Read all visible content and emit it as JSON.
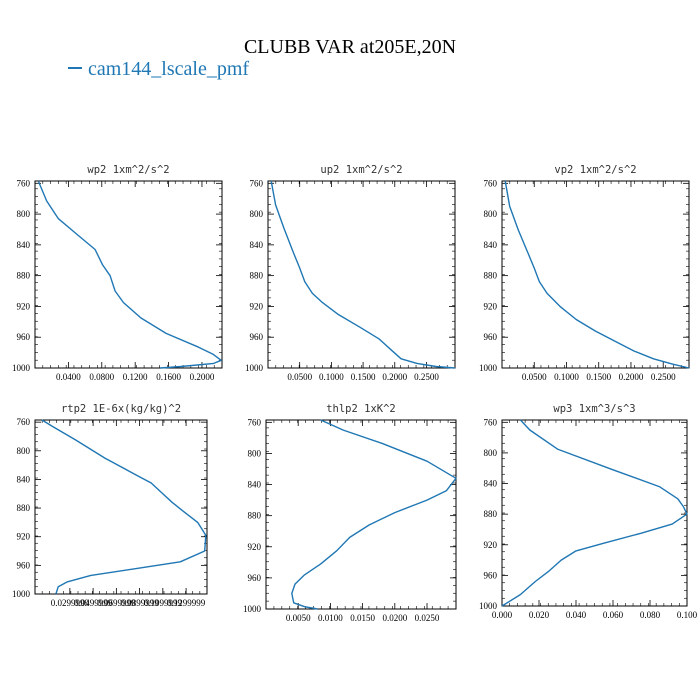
{
  "title": "CLUBB VAR at205E,20N",
  "legend": [
    {
      "label": "cam144_lscale_pmf",
      "color": "#1f77b4"
    }
  ],
  "chart_data": [
    {
      "type": "line",
      "title": "wp2  1xm^2/s^2",
      "xlim": [
        0,
        0.224
      ],
      "ylim": [
        757,
        1000
      ],
      "xticks": [
        0.04,
        0.08,
        0.12,
        0.16,
        0.2
      ],
      "xtick_labels": [
        "0.0400",
        "0.0800",
        "0.1200",
        "0.1600",
        "0.2000"
      ],
      "yticks": [
        760,
        800,
        840,
        880,
        920,
        960,
        1000
      ],
      "ytick_labels": [
        "760",
        "800",
        "840",
        "880",
        "920",
        "960",
        "1000"
      ],
      "series": [
        {
          "color": "#1f77b4",
          "x": [
            0.004,
            0.014,
            0.028,
            0.05,
            0.072,
            0.081,
            0.09,
            0.096,
            0.106,
            0.127,
            0.157,
            0.196,
            0.213,
            0.223,
            0.214,
            0.175,
            0.15
          ],
          "y": [
            757,
            783,
            806,
            826,
            846,
            866,
            880,
            900,
            915,
            935,
            955,
            973,
            982,
            990,
            994,
            998,
            1000
          ]
        }
      ]
    },
    {
      "type": "line",
      "title": "up2  1xm^2/s^2",
      "xlim": [
        0,
        0.295
      ],
      "ylim": [
        757,
        1000
      ],
      "xticks": [
        0.05,
        0.1,
        0.15,
        0.2,
        0.25
      ],
      "xtick_labels": [
        "0.0500",
        "0.1000",
        "0.1500",
        "0.2000",
        "0.2500"
      ],
      "yticks": [
        760,
        800,
        840,
        880,
        920,
        960,
        1000
      ],
      "ytick_labels": [
        "760",
        "800",
        "840",
        "880",
        "920",
        "960",
        "1000"
      ],
      "series": [
        {
          "color": "#1f77b4",
          "x": [
            0.005,
            0.012,
            0.025,
            0.04,
            0.05,
            0.058,
            0.07,
            0.086,
            0.11,
            0.145,
            0.175,
            0.195,
            0.21,
            0.235,
            0.265,
            0.295
          ],
          "y": [
            757,
            788,
            818,
            850,
            870,
            888,
            903,
            915,
            930,
            947,
            962,
            977,
            988,
            994,
            998,
            1000
          ]
        }
      ]
    },
    {
      "type": "line",
      "title": "vp2  1xm^2/s^2",
      "xlim": [
        0,
        0.29
      ],
      "ylim": [
        757,
        1000
      ],
      "xticks": [
        0.05,
        0.1,
        0.15,
        0.2,
        0.25
      ],
      "xtick_labels": [
        "0.0500",
        "0.1000",
        "0.1500",
        "0.2000",
        "0.2500"
      ],
      "yticks": [
        760,
        800,
        840,
        880,
        920,
        960,
        1000
      ],
      "ytick_labels": [
        "760",
        "800",
        "840",
        "880",
        "920",
        "960",
        "1000"
      ],
      "series": [
        {
          "color": "#1f77b4",
          "x": [
            0.005,
            0.012,
            0.025,
            0.04,
            0.05,
            0.058,
            0.07,
            0.09,
            0.115,
            0.145,
            0.175,
            0.205,
            0.235,
            0.265,
            0.29
          ],
          "y": [
            757,
            790,
            820,
            850,
            870,
            888,
            903,
            920,
            937,
            952,
            965,
            978,
            988,
            995,
            1000
          ]
        }
      ]
    },
    {
      "type": "line",
      "title": "rtp2  1E-6x(kg/kg)^2",
      "xlim": [
        0,
        0.148
      ],
      "ylim": [
        757,
        1000
      ],
      "xticks": [
        0.03,
        0.05,
        0.07,
        0.09,
        0.11,
        0.13
      ],
      "xtick_labels": [
        "0.0299999",
        "0.0499999",
        "0.0699999",
        "0.0899999",
        "0.1099999",
        "0.1299999"
      ],
      "yticks": [
        760,
        800,
        840,
        880,
        920,
        960,
        1000
      ],
      "ytick_labels": [
        "760",
        "800",
        "840",
        "880",
        "920",
        "960",
        "1000"
      ],
      "series": [
        {
          "color": "#1f77b4",
          "x": [
            0.006,
            0.015,
            0.035,
            0.06,
            0.085,
            0.1,
            0.11,
            0.118,
            0.128,
            0.14,
            0.147,
            0.146,
            0.125,
            0.085,
            0.048,
            0.028,
            0.02,
            0.018
          ],
          "y": [
            757,
            766,
            785,
            810,
            832,
            845,
            860,
            872,
            885,
            900,
            918,
            940,
            955,
            965,
            974,
            983,
            990,
            1000
          ]
        }
      ]
    },
    {
      "type": "line",
      "title": "thlp2  1xK^2",
      "xlim": [
        0,
        0.0295
      ],
      "ylim": [
        757,
        1000
      ],
      "xticks": [
        0.005,
        0.01,
        0.015,
        0.02,
        0.025
      ],
      "xtick_labels": [
        "0.0050",
        "0.0100",
        "0.0150",
        "0.0200",
        "0.0250"
      ],
      "yticks": [
        760,
        800,
        840,
        880,
        920,
        960,
        1000
      ],
      "ytick_labels": [
        "760",
        "800",
        "840",
        "880",
        "920",
        "960",
        "1000"
      ],
      "series": [
        {
          "color": "#1f77b4",
          "x": [
            0.0085,
            0.012,
            0.018,
            0.025,
            0.0295,
            0.028,
            0.025,
            0.02,
            0.016,
            0.013,
            0.011,
            0.0085,
            0.006,
            0.0045,
            0.004,
            0.0043,
            0.006,
            0.008
          ],
          "y": [
            757,
            770,
            787,
            810,
            832,
            848,
            860,
            876,
            892,
            908,
            925,
            942,
            956,
            968,
            980,
            992,
            997,
            1000
          ]
        }
      ]
    },
    {
      "type": "line",
      "title": "wp3  1xm^3/s^3",
      "xlim": [
        0,
        0.1
      ],
      "ylim": [
        757,
        1000
      ],
      "xticks": [
        0.0,
        0.02,
        0.04,
        0.06,
        0.08,
        0.1
      ],
      "xtick_labels": [
        "0.000",
        "0.020",
        "0.040",
        "0.060",
        "0.080",
        "0.100"
      ],
      "yticks": [
        760,
        800,
        840,
        880,
        920,
        960,
        1000
      ],
      "ytick_labels": [
        "760",
        "800",
        "840",
        "880",
        "920",
        "960",
        "1000"
      ],
      "series": [
        {
          "color": "#1f77b4",
          "x": [
            0.01,
            0.015,
            0.03,
            0.06,
            0.085,
            0.095,
            0.098,
            0.1,
            0.092,
            0.075,
            0.055,
            0.04,
            0.032,
            0.025,
            0.018,
            0.01,
            0.0
          ],
          "y": [
            757,
            770,
            795,
            822,
            844,
            860,
            870,
            880,
            893,
            905,
            918,
            928,
            940,
            955,
            968,
            985,
            1000
          ]
        }
      ]
    }
  ]
}
